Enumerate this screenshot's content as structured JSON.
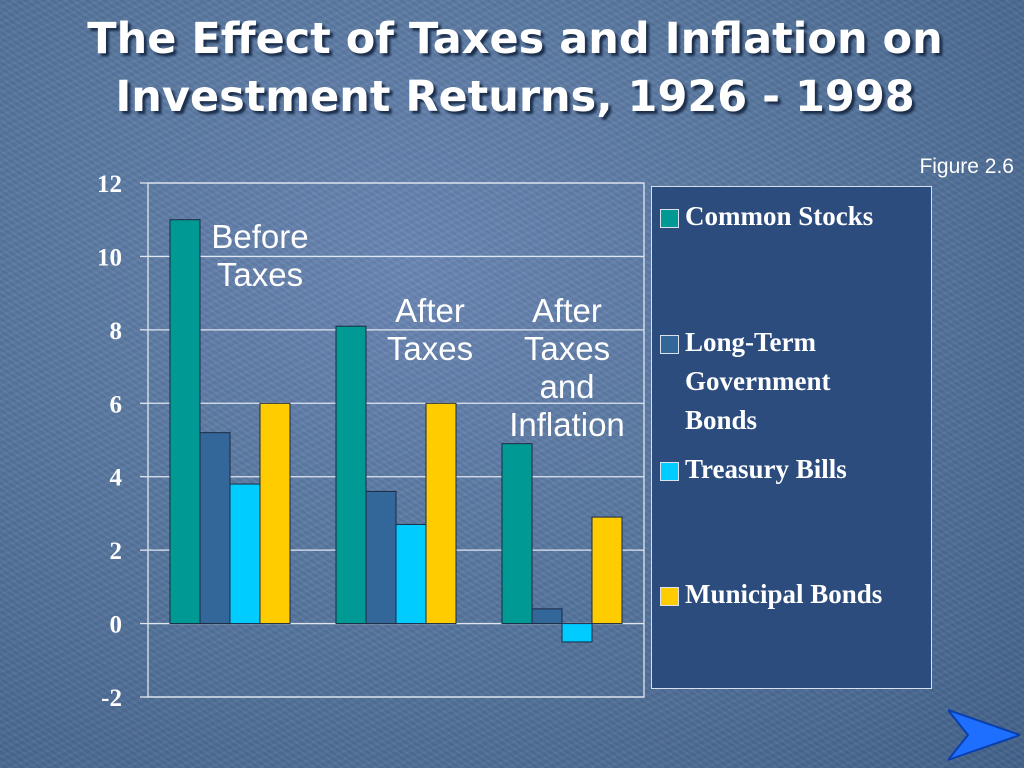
{
  "slide": {
    "title": "The Effect of Taxes and Inflation on Investment Returns, 1926 - 1998",
    "figure_label": "Figure 2.6"
  },
  "chart_data": {
    "type": "bar",
    "categories": [
      "Before Taxes",
      "After Taxes",
      "After Taxes and Inflation"
    ],
    "series": [
      {
        "name": "Common Stocks",
        "color": "#009993",
        "values": [
          11.0,
          8.1,
          4.9
        ]
      },
      {
        "name": "Long-Term Government Bonds",
        "color": "#336699",
        "values": [
          5.2,
          3.6,
          0.4
        ]
      },
      {
        "name": "Treasury Bills",
        "color": "#00ccff",
        "values": [
          3.8,
          2.7,
          -0.5
        ]
      },
      {
        "name": "Municipal Bonds",
        "color": "#ffcc00",
        "values": [
          6.0,
          6.0,
          2.9
        ]
      }
    ],
    "ylim": [
      -2,
      12
    ],
    "yticks": [
      "-2",
      "0",
      "2",
      "4",
      "6",
      "8",
      "10",
      "12"
    ],
    "grid": true,
    "legend_position": "right",
    "group_labels": [
      [
        "Before",
        "Taxes"
      ],
      [
        "After",
        "Taxes"
      ],
      [
        "After",
        "Taxes",
        "and",
        "Inflation"
      ]
    ]
  },
  "nav": {
    "next_icon": "arrow-right-icon"
  }
}
